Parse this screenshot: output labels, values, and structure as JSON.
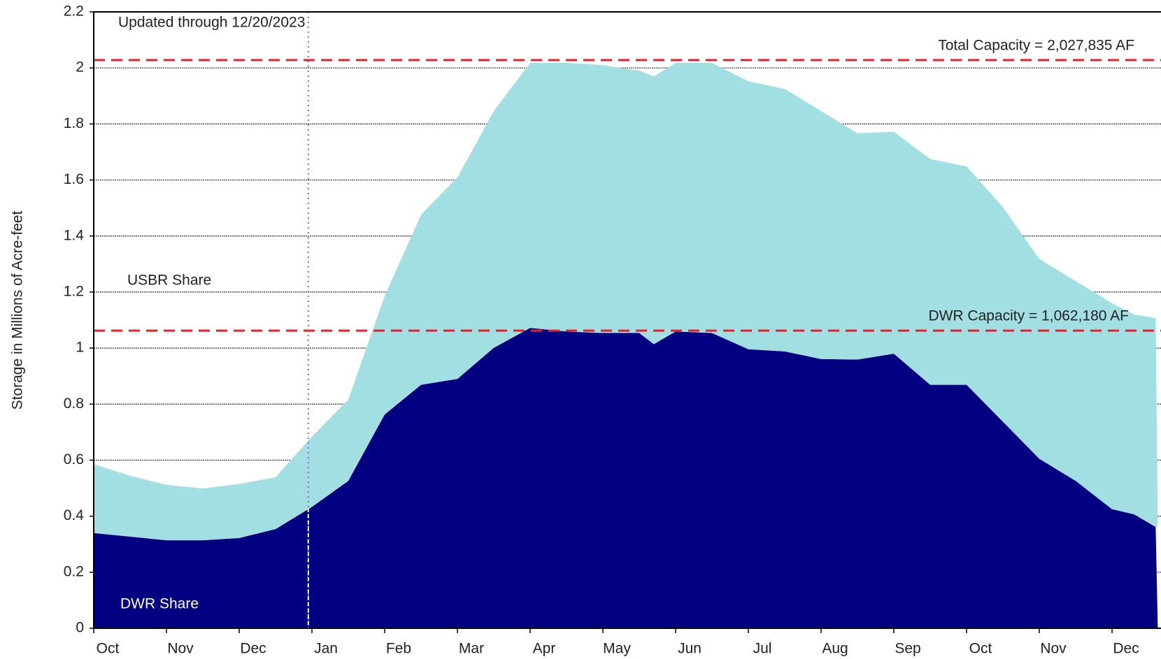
{
  "chart_data": {
    "type": "stacked_area",
    "y_label": "Storage in Millions of Acre-feet",
    "categories": [
      "Oct",
      "Nov",
      "Dec",
      "Jan",
      "Feb",
      "Mar",
      "Apr",
      "May",
      "Jun",
      "Jul",
      "Aug",
      "Sep",
      "Oct",
      "Nov",
      "Dec"
    ],
    "x": [
      0,
      0.5,
      1,
      1.5,
      2,
      2.5,
      3,
      3.5,
      4,
      4.5,
      5,
      5.5,
      6,
      6.5,
      7,
      7.5,
      7.7,
      8,
      8.5,
      9,
      9.5,
      10,
      10.5,
      11,
      11.5,
      12,
      12.5,
      13,
      13.5,
      14,
      14.3,
      14.6
    ],
    "xlim": [
      0,
      15
    ],
    "series": [
      {
        "name": "DWR Share",
        "color": "#000080",
        "values": [
          0.34,
          0.327,
          0.314,
          0.314,
          0.322,
          0.354,
          0.433,
          0.526,
          0.763,
          0.869,
          0.89,
          1.001,
          1.072,
          1.059,
          1.054,
          1.054,
          1.014,
          1.059,
          1.054,
          0.996,
          0.988,
          0.961,
          0.959,
          0.98,
          0.869,
          0.869,
          0.737,
          0.605,
          0.526,
          0.425,
          0.407,
          0.362
        ]
      },
      {
        "name": "USBR Share",
        "color": "#a1dfe2",
        "values": [
          0.246,
          0.217,
          0.198,
          0.185,
          0.193,
          0.185,
          0.251,
          0.29,
          0.423,
          0.607,
          0.719,
          0.845,
          0.946,
          0.959,
          0.956,
          0.936,
          0.956,
          0.959,
          0.964,
          0.956,
          0.937,
          0.885,
          0.808,
          0.792,
          0.806,
          0.779,
          0.766,
          0.713,
          0.713,
          0.735,
          0.713,
          0.745
        ]
      }
    ],
    "reference_lines": [
      {
        "value": 2.027835,
        "label": "Total Capacity = 2,027,835 AF",
        "color": "#e8202a"
      },
      {
        "value": 1.06218,
        "label": "DWR Capacity = 1,062,180 AF",
        "color": "#e8202a"
      }
    ],
    "annotation": {
      "text": "Updated through 12/20/2023",
      "x": 2.95
    },
    "ylim": [
      0,
      2.2
    ],
    "yticks": [
      0,
      0.2,
      0.4,
      0.6,
      0.8,
      1,
      1.2,
      1.4,
      1.6,
      1.8,
      2,
      2.2
    ],
    "grid": true
  }
}
